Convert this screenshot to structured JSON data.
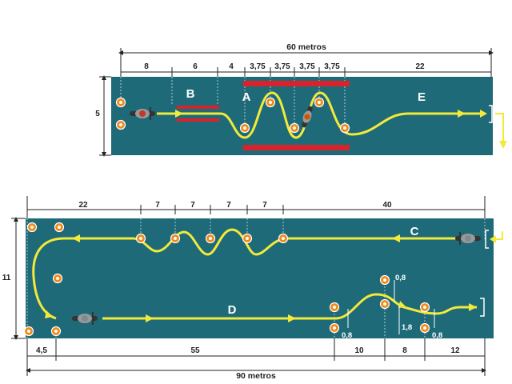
{
  "course_top": {
    "total_label": "60 metros",
    "segment_labels": [
      "8",
      "6",
      "4",
      "3,75",
      "3,75",
      "3,75",
      "3,75",
      "22"
    ],
    "width_label": "5",
    "zones": [
      "A",
      "B",
      "E"
    ]
  },
  "course_bottom": {
    "top_segment_labels": [
      "22",
      "7",
      "7",
      "7",
      "7",
      "40"
    ],
    "bottom_segment_labels": [
      "4,5",
      "55",
      "10",
      "8",
      "12"
    ],
    "total_label": "90 metros",
    "width_label": "11",
    "zones": [
      "C",
      "D"
    ],
    "small_labels": [
      "0,8",
      "0,8",
      "1,8",
      "0,8"
    ]
  },
  "colors": {
    "track": "#1e6a78",
    "path": "#f2ea3a",
    "barrier": "#d9232a",
    "cone": "#f08a1c",
    "dimension": "#222222"
  }
}
